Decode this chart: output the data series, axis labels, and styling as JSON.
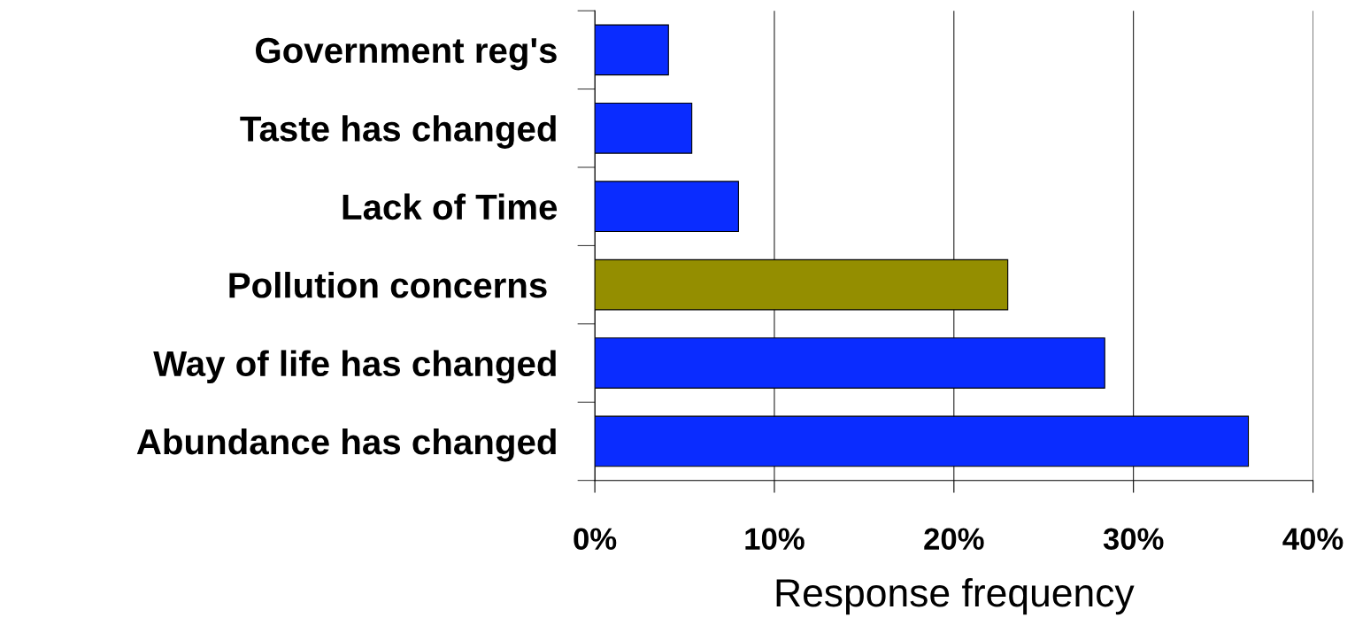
{
  "chart_data": {
    "type": "bar",
    "orientation": "horizontal",
    "categories": [
      "Government reg's",
      "Taste has changed",
      "Lack of Time",
      "Pollution concerns ",
      "Way of life has changed",
      "Abundance has changed"
    ],
    "values": [
      4.1,
      5.4,
      8.0,
      23.0,
      28.4,
      36.4
    ],
    "colors": [
      "#0a2cff",
      "#0a2cff",
      "#0a2cff",
      "#948e00",
      "#0a2cff",
      "#0a2cff"
    ],
    "xlabel": "Response frequency",
    "xlim": [
      0,
      40
    ],
    "xticks": [
      {
        "value": 0,
        "label": "0%"
      },
      {
        "value": 10,
        "label": "10%"
      },
      {
        "value": 20,
        "label": "20%"
      },
      {
        "value": 30,
        "label": "30%"
      },
      {
        "value": 40,
        "label": "40%"
      }
    ],
    "grid": "x"
  }
}
